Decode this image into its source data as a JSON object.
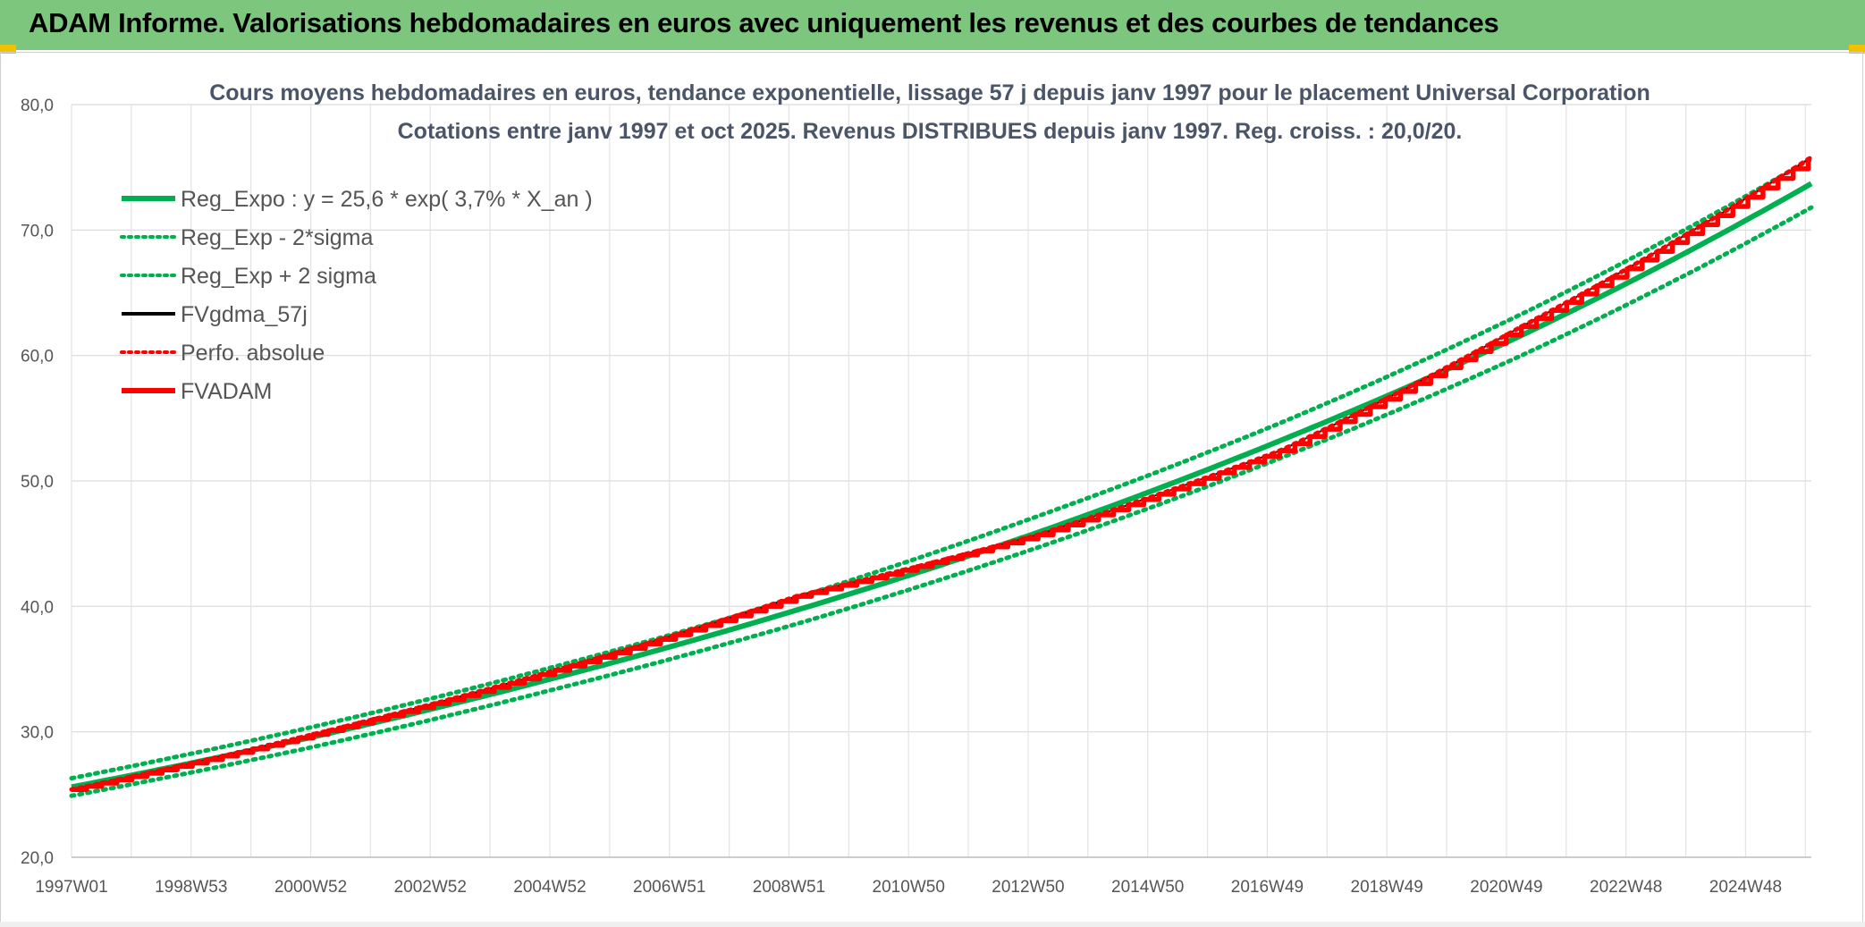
{
  "header": {
    "title": "ADAM Informe. Valorisations hebdomadaires en euros avec uniquement les revenus et des courbes de tendances"
  },
  "colors": {
    "header_band": "#7dc67e",
    "green": "#00b050",
    "red": "#ff0000",
    "black": "#000000"
  },
  "chart_data": {
    "type": "line",
    "title_line1": "Cours moyens hebdomadaires en euros, tendance exponentielle, lissage 57 j depuis janv 1997 pour le placement Universal Corporation",
    "title_line2": "Cotations entre janv 1997 et oct 2025. Revenus DISTRIBUES depuis janv 1997. Reg. croiss. : 20,0/20.",
    "xlabel": "",
    "ylabel": "",
    "ylim": [
      20,
      80
    ],
    "yticks": [
      "20,0",
      "30,0",
      "40,0",
      "50,0",
      "60,0",
      "70,0",
      "80,0"
    ],
    "x_tick_labels": [
      "1997W01",
      "1998W53",
      "2000W52",
      "2002W52",
      "2004W52",
      "2006W51",
      "2008W51",
      "2010W50",
      "2012W50",
      "2014W50",
      "2016W49",
      "2018W49",
      "2020W49",
      "2022W48",
      "2024W48"
    ],
    "x_range_years": [
      1997.0,
      2025.8
    ],
    "grid": true,
    "legend_position": "top-left",
    "series": [
      {
        "name": "Reg_Expo : y = 25,6 * exp( 3,7% *  X_an )",
        "style": "solid-thick",
        "color": "#00b050",
        "x": [
          1997.0,
          2001.0,
          2005.0,
          2009.0,
          2013.0,
          2017.0,
          2021.0,
          2025.8
        ],
        "values": [
          25.6,
          29.6,
          34.3,
          39.7,
          45.9,
          53.2,
          61.6,
          73.7
        ]
      },
      {
        "name": "Reg_Exp - 2*sigma",
        "style": "dotted",
        "color": "#00b050",
        "x": [
          1997.0,
          2001.0,
          2005.0,
          2009.0,
          2013.0,
          2017.0,
          2021.0,
          2025.8
        ],
        "values": [
          24.9,
          28.8,
          33.4,
          38.6,
          44.7,
          51.8,
          60.0,
          71.8
        ]
      },
      {
        "name": "Reg_Exp + 2 sigma",
        "style": "dotted",
        "color": "#00b050",
        "x": [
          1997.0,
          2001.0,
          2005.0,
          2009.0,
          2013.0,
          2017.0,
          2021.0,
          2025.8
        ],
        "values": [
          26.3,
          30.4,
          35.2,
          40.7,
          47.2,
          54.6,
          63.3,
          75.7
        ]
      },
      {
        "name": "FVgdma_57j",
        "style": "solid",
        "color": "#000000",
        "x": [
          1997.0,
          2001.0,
          2005.0,
          2009.0,
          2013.0,
          2017.0,
          2021.0,
          2025.8
        ],
        "values": [
          25.4,
          29.8,
          34.9,
          40.8,
          45.7,
          52.4,
          62.3,
          75.8
        ]
      },
      {
        "name": "Perfo. absolue",
        "style": "dotted",
        "color": "#ff0000",
        "x": [
          1997.0,
          2001.0,
          2005.0,
          2009.0,
          2013.0,
          2017.0,
          2021.0,
          2025.8
        ],
        "values": [
          25.4,
          29.8,
          34.9,
          40.8,
          45.7,
          52.4,
          62.3,
          75.8
        ]
      },
      {
        "name": "FVADAM",
        "style": "solid-thick-stepped",
        "color": "#ff0000",
        "x": [
          1997.0,
          2001.0,
          2005.0,
          2009.0,
          2013.0,
          2017.0,
          2021.0,
          2025.8
        ],
        "values": [
          25.4,
          29.8,
          34.9,
          40.8,
          45.7,
          52.4,
          62.3,
          75.8
        ]
      }
    ]
  }
}
